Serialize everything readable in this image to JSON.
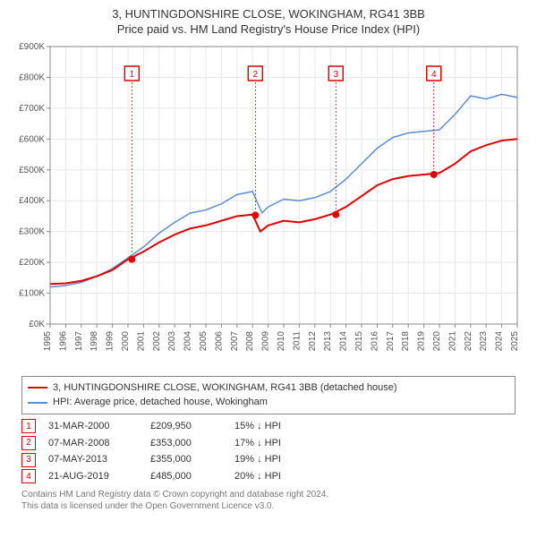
{
  "title_line1": "3, HUNTINGDONSHIRE CLOSE, WOKINGHAM, RG41 3BB",
  "title_line2": "Price paid vs. HM Land Registry's House Price Index (HPI)",
  "chart": {
    "type": "line",
    "background_color": "#ffffff",
    "grid_color": "#e8e8e8",
    "axis_color": "#888888",
    "tick_color": "#555555",
    "x_years": [
      1995,
      1996,
      1997,
      1998,
      1999,
      2000,
      2001,
      2002,
      2003,
      2004,
      2005,
      2006,
      2007,
      2008,
      2009,
      2010,
      2011,
      2012,
      2013,
      2014,
      2015,
      2016,
      2017,
      2018,
      2019,
      2020,
      2021,
      2022,
      2023,
      2024,
      2025
    ],
    "xlim": [
      1995,
      2025
    ],
    "ytick_prefix": "£",
    "ytick_suffix": "K",
    "yticks": [
      0,
      100,
      200,
      300,
      400,
      500,
      600,
      700,
      800,
      900
    ],
    "ylim": [
      0,
      900
    ],
    "series": [
      {
        "name": "price_paid",
        "color": "#e00000",
        "width": 2,
        "values": [
          [
            1995,
            130
          ],
          [
            1996,
            132
          ],
          [
            1997,
            140
          ],
          [
            1998,
            155
          ],
          [
            1999,
            175
          ],
          [
            2000,
            210
          ],
          [
            2001,
            235
          ],
          [
            2002,
            265
          ],
          [
            2003,
            290
          ],
          [
            2004,
            310
          ],
          [
            2005,
            320
          ],
          [
            2006,
            335
          ],
          [
            2007,
            350
          ],
          [
            2008,
            355
          ],
          [
            2008.5,
            300
          ],
          [
            2009,
            320
          ],
          [
            2010,
            335
          ],
          [
            2011,
            330
          ],
          [
            2012,
            340
          ],
          [
            2013,
            355
          ],
          [
            2014,
            380
          ],
          [
            2015,
            415
          ],
          [
            2016,
            450
          ],
          [
            2017,
            470
          ],
          [
            2018,
            480
          ],
          [
            2019,
            485
          ],
          [
            2020,
            490
          ],
          [
            2021,
            520
          ],
          [
            2022,
            560
          ],
          [
            2023,
            580
          ],
          [
            2024,
            595
          ],
          [
            2025,
            600
          ]
        ]
      },
      {
        "name": "hpi",
        "color": "#5b8dd6",
        "width": 1.5,
        "values": [
          [
            1995,
            120
          ],
          [
            1996,
            125
          ],
          [
            1997,
            135
          ],
          [
            1998,
            155
          ],
          [
            1999,
            180
          ],
          [
            2000,
            215
          ],
          [
            2001,
            250
          ],
          [
            2002,
            295
          ],
          [
            2003,
            330
          ],
          [
            2004,
            360
          ],
          [
            2005,
            370
          ],
          [
            2006,
            390
          ],
          [
            2007,
            420
          ],
          [
            2008,
            430
          ],
          [
            2008.6,
            360
          ],
          [
            2009,
            380
          ],
          [
            2010,
            405
          ],
          [
            2011,
            400
          ],
          [
            2012,
            410
          ],
          [
            2013,
            430
          ],
          [
            2014,
            470
          ],
          [
            2015,
            520
          ],
          [
            2016,
            570
          ],
          [
            2017,
            605
          ],
          [
            2018,
            620
          ],
          [
            2019,
            625
          ],
          [
            2020,
            630
          ],
          [
            2021,
            680
          ],
          [
            2022,
            740
          ],
          [
            2023,
            730
          ],
          [
            2024,
            745
          ],
          [
            2025,
            735
          ]
        ]
      }
    ],
    "markers": [
      {
        "year": 2000.25,
        "value": 210,
        "label": "1"
      },
      {
        "year": 2008.18,
        "value": 353,
        "label": "2"
      },
      {
        "year": 2013.35,
        "value": 355,
        "label": "3"
      },
      {
        "year": 2019.64,
        "value": 485,
        "label": "4"
      }
    ],
    "marker_color": "#e00000",
    "marker_radius": 4,
    "marker_box_border": "#e00000",
    "marker_label_color": "#e00000",
    "marker_label_fontsize": 10
  },
  "legend": {
    "items": [
      {
        "color": "#e00000",
        "label": "3, HUNTINGDONSHIRE CLOSE, WOKINGHAM, RG41 3BB (detached house)"
      },
      {
        "color": "#5b8dd6",
        "label": "HPI: Average price, detached house, Wokingham"
      }
    ]
  },
  "events": [
    {
      "n": "1",
      "date": "31-MAR-2000",
      "price": "£209,950",
      "delta": "15% ↓ HPI"
    },
    {
      "n": "2",
      "date": "07-MAR-2008",
      "price": "£353,000",
      "delta": "17% ↓ HPI"
    },
    {
      "n": "3",
      "date": "07-MAY-2013",
      "price": "£355,000",
      "delta": "19% ↓ HPI"
    },
    {
      "n": "4",
      "date": "21-AUG-2019",
      "price": "£485,000",
      "delta": "20% ↓ HPI"
    }
  ],
  "footer_line1": "Contains HM Land Registry data © Crown copyright and database right 2024.",
  "footer_line2": "This data is licensed under the Open Government Licence v3.0."
}
